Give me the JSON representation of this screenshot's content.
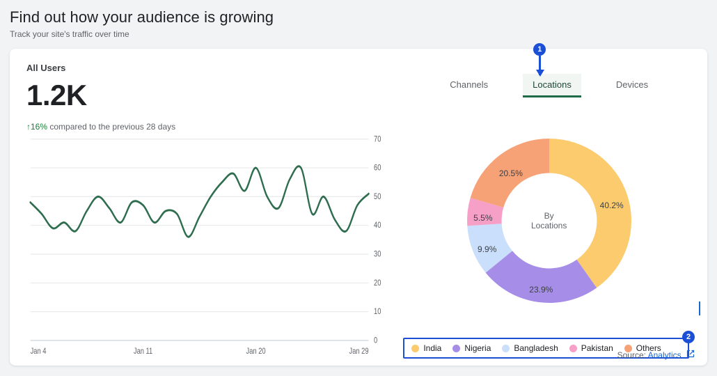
{
  "page": {
    "title": "Find out how your audience is growing",
    "subtitle": "Track your site's traffic over time"
  },
  "metric": {
    "label": "All Users",
    "value": "1.2K",
    "trend_pct": "16%",
    "trend_text": "compared to the previous 28 days",
    "trend_direction_glyph": "↑",
    "trend_color": "#188038"
  },
  "line_chart": {
    "type": "line",
    "line_color": "#2e6d4e",
    "line_width": 2.5,
    "grid_color": "#e8eaed",
    "axis_color": "#9aa0a6",
    "tick_font_size": 10,
    "background_color": "#ffffff",
    "x_ticks": [
      "Jan 4",
      "Jan 11",
      "Jan 20",
      "Jan 29"
    ],
    "ylim": [
      0,
      70
    ],
    "ytick_step": 10,
    "points": [
      [
        0,
        48
      ],
      [
        1,
        44
      ],
      [
        2,
        39
      ],
      [
        3,
        41
      ],
      [
        4,
        38
      ],
      [
        5,
        45
      ],
      [
        6,
        50
      ],
      [
        7,
        46
      ],
      [
        8,
        41
      ],
      [
        9,
        48
      ],
      [
        10,
        47
      ],
      [
        11,
        41
      ],
      [
        12,
        45
      ],
      [
        13,
        44
      ],
      [
        14,
        36
      ],
      [
        15,
        43
      ],
      [
        16,
        50
      ],
      [
        17,
        55
      ],
      [
        18,
        58
      ],
      [
        19,
        52
      ],
      [
        20,
        60
      ],
      [
        21,
        50
      ],
      [
        22,
        46
      ],
      [
        23,
        56
      ],
      [
        24,
        60
      ],
      [
        25,
        44
      ],
      [
        26,
        50
      ],
      [
        27,
        42
      ],
      [
        28,
        38
      ],
      [
        29,
        47
      ],
      [
        30,
        51
      ]
    ],
    "x_domain": [
      0,
      30
    ]
  },
  "tabs": {
    "items": [
      "Channels",
      "Locations",
      "Devices"
    ],
    "active_index": 1
  },
  "donut": {
    "type": "donut",
    "center_text_top": "By",
    "center_text_bottom": "Locations",
    "inner_radius_ratio": 0.58,
    "label_fontsize": 12,
    "label_color": "#3c4043",
    "background_color": "#ffffff",
    "start_angle_deg": -90,
    "slices": [
      {
        "name": "India",
        "pct": 40.2,
        "color": "#fbcb6e",
        "label": "40.2%"
      },
      {
        "name": "Nigeria",
        "pct": 23.9,
        "color": "#a68ee8",
        "label": "23.9%"
      },
      {
        "name": "Bangladesh",
        "pct": 9.9,
        "color": "#c9dffb",
        "label": "9.9%"
      },
      {
        "name": "Pakistan",
        "pct": 5.5,
        "color": "#f6a0c8",
        "label": "5.5%"
      },
      {
        "name": "Others",
        "pct": 20.5,
        "color": "#f6a176",
        "label": "20.5%"
      }
    ]
  },
  "source": {
    "prefix": "Source:",
    "name": "Analytics",
    "link_color": "#1967d2"
  },
  "annotations": {
    "badge_bg": "#1a4fd6",
    "callouts": [
      {
        "n": "1"
      },
      {
        "n": "2"
      }
    ]
  }
}
